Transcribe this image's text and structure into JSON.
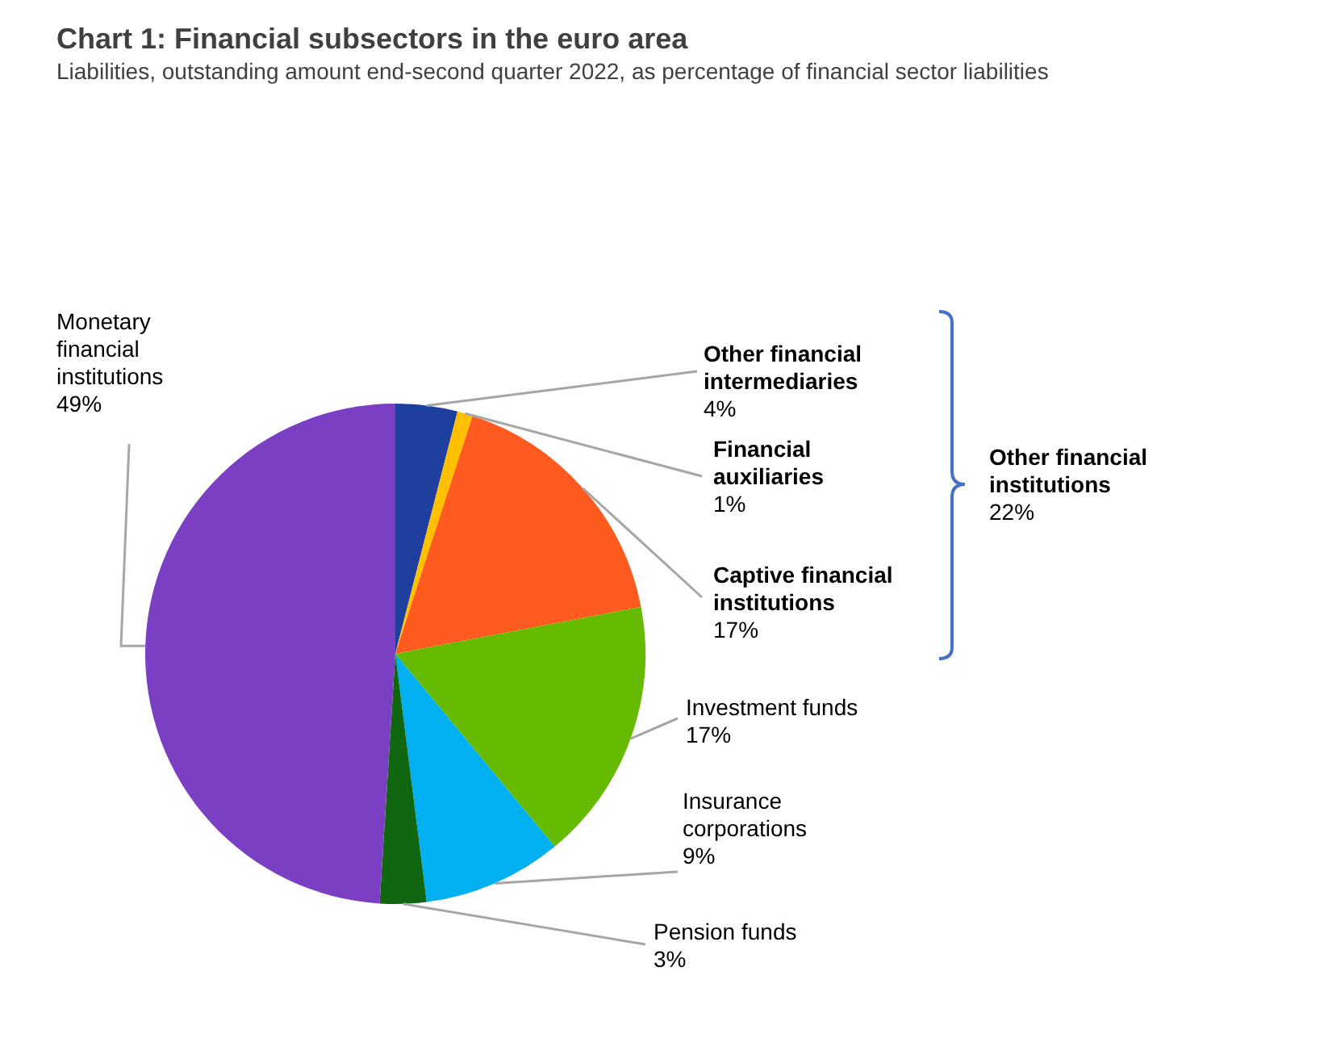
{
  "chart_data": {
    "type": "pie",
    "title": "Chart 1: Financial subsectors in the euro area",
    "subtitle": "Liabilities, outstanding amount end-second quarter 2022, as percentage of financial sector liabilities",
    "categories": [
      "Other financial intermediaries",
      "Financial auxiliaries",
      "Captive financial institutions",
      "Investment funds",
      "Insurance corporations",
      "Pension funds",
      "Monetary financial institutions"
    ],
    "values": [
      4,
      1,
      17,
      17,
      9,
      3,
      49
    ],
    "value_labels": [
      "4%",
      "1%",
      "17%",
      "17%",
      "9%",
      "3%",
      "49%"
    ],
    "colors": [
      "#1f3f9f",
      "#ffc000",
      "#ff5a1f",
      "#66bb00",
      "#00b0f0",
      "#116611",
      "#7b3fc4"
    ],
    "annotations": [
      "Other financial institutions\n22%"
    ],
    "legend": false
  }
}
